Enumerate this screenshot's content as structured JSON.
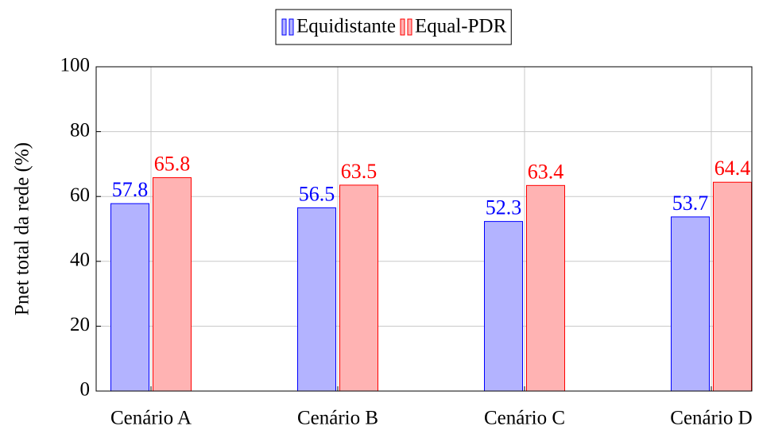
{
  "chart_data": {
    "type": "bar",
    "categories": [
      "Cenário A",
      "Cenário B",
      "Cenário C",
      "Cenário D"
    ],
    "series": [
      {
        "name": "Equidistante",
        "color": "#b3b3ff",
        "edge_color": "#0000ff",
        "values": [
          57.8,
          56.5,
          52.3,
          53.7
        ]
      },
      {
        "name": "Equal-PDR",
        "color": "#ffb3b3",
        "edge_color": "#ff0000",
        "values": [
          65.8,
          63.5,
          63.4,
          64.4
        ]
      }
    ],
    "ylabel": "Pnet total da rede (%)",
    "ylim": [
      0,
      100
    ],
    "yticks": [
      0,
      20,
      40,
      60,
      80,
      100
    ],
    "grid": true,
    "legend": "above"
  }
}
